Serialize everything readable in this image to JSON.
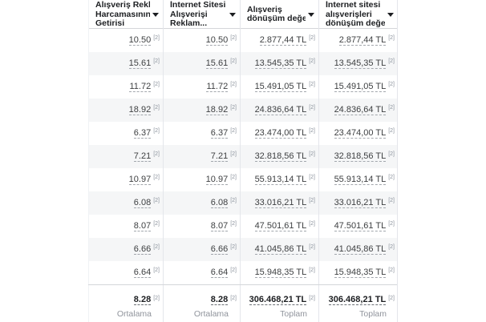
{
  "table": {
    "sort_icon": "caret-down",
    "footnote_marker": "[2]",
    "columns": [
      {
        "label": "Alışveriş Reklam Harcamasının Getirisi",
        "lines": [
          "Alışveriş Reklam",
          "Harcamasının",
          "Getirisi"
        ]
      },
      {
        "label": "İnternet Sitesi Alışverişi Reklam...",
        "lines": [
          "İnternet Sitesi",
          "Alışverişi",
          "Reklam..."
        ]
      },
      {
        "label": "Alışveriş dönüşüm değeri",
        "lines": [
          "Alışveriş",
          "dönüşüm değeri"
        ]
      },
      {
        "label": "İnternet sitesi alışverişleri dönüşüm değeri",
        "lines": [
          "İnternet sitesi",
          "alışverişleri",
          "dönüşüm değeri"
        ]
      }
    ],
    "rows": [
      [
        "10.50",
        "10.50",
        "2.877,44 TL",
        "2.877,44 TL"
      ],
      [
        "15.61",
        "15.61",
        "13.545,35 TL",
        "13.545,35 TL"
      ],
      [
        "11.72",
        "11.72",
        "15.491,05 TL",
        "15.491,05 TL"
      ],
      [
        "18.92",
        "18.92",
        "24.836,64 TL",
        "24.836,64 TL"
      ],
      [
        "6.37",
        "6.37",
        "23.474,00 TL",
        "23.474,00 TL"
      ],
      [
        "7.21",
        "7.21",
        "32.818,56 TL",
        "32.818,56 TL"
      ],
      [
        "10.97",
        "10.97",
        "55.913,14 TL",
        "55.913,14 TL"
      ],
      [
        "6.08",
        "6.08",
        "33.016,21 TL",
        "33.016,21 TL"
      ],
      [
        "8.07",
        "8.07",
        "47.501,61 TL",
        "47.501,61 TL"
      ],
      [
        "6.66",
        "6.66",
        "41.045,86 TL",
        "41.045,86 TL"
      ],
      [
        "6.64",
        "6.64",
        "15.948,35 TL",
        "15.948,35 TL"
      ]
    ],
    "footer": {
      "values": [
        "8.28",
        "8.28",
        "306.468,21 TL",
        "306.468,21 TL"
      ],
      "labels": [
        "Ortalama",
        "Ortalama",
        "Toplam",
        "Toplam"
      ]
    },
    "colors": {
      "stripe": "#f5f6f7",
      "divider": "#e4e6eb",
      "header_text": "#1c1e21",
      "value_text": "#3e4042",
      "muted_text": "#90949c"
    }
  }
}
